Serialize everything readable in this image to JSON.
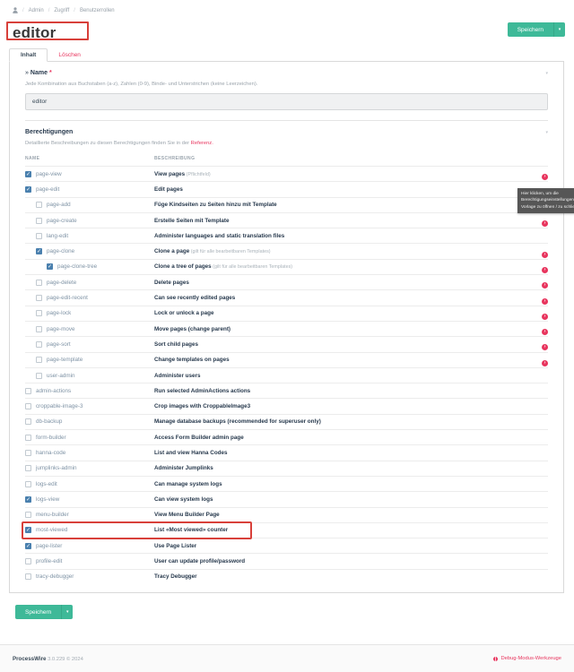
{
  "breadcrumb": {
    "items": [
      "Admin",
      "Zugriff",
      "Benutzerrollen"
    ],
    "separator": "/"
  },
  "header": {
    "title": "editor"
  },
  "save_button": {
    "label": "Speichern"
  },
  "tabs": [
    {
      "label": "Inhalt",
      "active": true
    },
    {
      "label": "Löschen",
      "active": false
    }
  ],
  "name_field": {
    "collapse_mark": "»",
    "legend": "Name",
    "required_marker": "*",
    "description": "Jede Kombination aus Buchstaben (a-z), Zahlen (0-9), Binde- und Unterstrichen (keine Leerzeichen).",
    "value": "editor"
  },
  "permissions": {
    "legend": "Berechtigungen",
    "description": "Detaillierte Beschreibungen zu diesen Berechtigungen finden Sie in der",
    "link_label": "Referenz.",
    "columns": [
      "NAME",
      "BESCHREIBUNG"
    ],
    "rows": [
      {
        "name": "page-view",
        "checked": true,
        "level": 0,
        "desc": "View pages",
        "note": "(Pflichtfeld)",
        "icon": true,
        "highlight": false
      },
      {
        "name": "page-edit",
        "checked": true,
        "level": 0,
        "desc": "Edit pages",
        "note": "",
        "icon": true,
        "highlight": false
      },
      {
        "name": "page-add",
        "checked": false,
        "level": 1,
        "desc": "Füge Kindseiten zu Seiten hinzu mit Template",
        "note": "",
        "icon": true,
        "highlight": false
      },
      {
        "name": "page-create",
        "checked": false,
        "level": 1,
        "desc": "Erstelle Seiten mit Template",
        "note": "",
        "icon": true,
        "highlight": false
      },
      {
        "name": "lang-edit",
        "checked": false,
        "level": 1,
        "desc": "Administer languages and static translation files",
        "note": "",
        "icon": false,
        "highlight": false
      },
      {
        "name": "page-clone",
        "checked": true,
        "level": 1,
        "desc": "Clone a page",
        "note": "(gilt für alle bearbeitbaren Templates)",
        "icon": true,
        "highlight": false
      },
      {
        "name": "page-clone-tree",
        "checked": true,
        "level": 2,
        "desc": "Clone a tree of pages",
        "note": "(gilt für alle bearbeitbaren Templates)",
        "icon": true,
        "highlight": false
      },
      {
        "name": "page-delete",
        "checked": false,
        "level": 1,
        "desc": "Delete pages",
        "note": "",
        "icon": true,
        "highlight": false
      },
      {
        "name": "page-edit-recent",
        "checked": false,
        "level": 1,
        "desc": "Can see recently edited pages",
        "note": "",
        "icon": true,
        "highlight": false
      },
      {
        "name": "page-lock",
        "checked": false,
        "level": 1,
        "desc": "Lock or unlock a page",
        "note": "",
        "icon": true,
        "highlight": false
      },
      {
        "name": "page-move",
        "checked": false,
        "level": 1,
        "desc": "Move pages (change parent)",
        "note": "",
        "icon": true,
        "highlight": false
      },
      {
        "name": "page-sort",
        "checked": false,
        "level": 1,
        "desc": "Sort child pages",
        "note": "",
        "icon": true,
        "highlight": false
      },
      {
        "name": "page-template",
        "checked": false,
        "level": 1,
        "desc": "Change templates on pages",
        "note": "",
        "icon": true,
        "highlight": false
      },
      {
        "name": "user-admin",
        "checked": false,
        "level": 1,
        "desc": "Administer users",
        "note": "",
        "icon": false,
        "highlight": false
      },
      {
        "name": "admin-actions",
        "checked": false,
        "level": 0,
        "desc": "Run selected AdminActions actions",
        "note": "",
        "icon": false,
        "highlight": false
      },
      {
        "name": "croppable-image-3",
        "checked": false,
        "level": 0,
        "desc": "Crop images with CroppableImage3",
        "note": "",
        "icon": false,
        "highlight": false
      },
      {
        "name": "db-backup",
        "checked": false,
        "level": 0,
        "desc": "Manage database backups (recommended for superuser only)",
        "note": "",
        "icon": false,
        "highlight": false
      },
      {
        "name": "form-builder",
        "checked": false,
        "level": 0,
        "desc": "Access Form Builder admin page",
        "note": "",
        "icon": false,
        "highlight": false
      },
      {
        "name": "hanna-code",
        "checked": false,
        "level": 0,
        "desc": "List and view Hanna Codes",
        "note": "",
        "icon": false,
        "highlight": false
      },
      {
        "name": "jumplinks-admin",
        "checked": false,
        "level": 0,
        "desc": "Administer Jumplinks",
        "note": "",
        "icon": false,
        "highlight": false
      },
      {
        "name": "logs-edit",
        "checked": false,
        "level": 0,
        "desc": "Can manage system logs",
        "note": "",
        "icon": false,
        "highlight": false
      },
      {
        "name": "logs-view",
        "checked": true,
        "level": 0,
        "desc": "Can view system logs",
        "note": "",
        "icon": false,
        "highlight": false
      },
      {
        "name": "menu-builder",
        "checked": false,
        "level": 0,
        "desc": "View Menu Builder Page",
        "note": "",
        "icon": false,
        "highlight": false
      },
      {
        "name": "most-viewed",
        "checked": true,
        "level": 0,
        "desc": "List «Most viewed» counter",
        "note": "",
        "icon": false,
        "highlight": true
      },
      {
        "name": "page-lister",
        "checked": true,
        "level": 0,
        "desc": "Use Page Lister",
        "note": "",
        "icon": false,
        "highlight": false
      },
      {
        "name": "profile-edit",
        "checked": false,
        "level": 0,
        "desc": "User can update profile/password",
        "note": "",
        "icon": false,
        "highlight": false
      },
      {
        "name": "tracy-debugger",
        "checked": false,
        "level": 0,
        "desc": "Tracy Debugger",
        "note": "",
        "icon": false,
        "highlight": false
      }
    ]
  },
  "tooltip": {
    "lines": [
      "Hier klicken, um die",
      "Berechtigungseinstellungen na",
      "Vorlage zu öffnen / zu schließe"
    ]
  },
  "footer": {
    "brand": "ProcessWire",
    "version": "3.0.229 © 2024",
    "debug_label": "Debug-Modus-Werkzeuge"
  },
  "colors": {
    "accent_green": "#3eb998",
    "accent_red": "#e8355e",
    "annotation_red": "#d8403a"
  }
}
